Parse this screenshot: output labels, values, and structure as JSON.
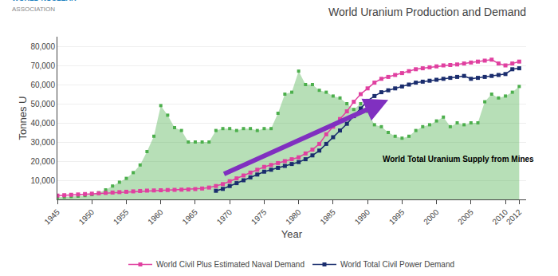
{
  "chart_data": {
    "type": "line",
    "title": "World Uranium Production and Demand",
    "x_label": "Year",
    "y_label": "Tonnes U",
    "xlim": [
      1945,
      2013
    ],
    "ylim": [
      0,
      85000
    ],
    "xticks": [
      1945,
      1950,
      1955,
      1960,
      1965,
      1970,
      1975,
      1980,
      1985,
      1990,
      1995,
      2000,
      2005,
      2010,
      2012
    ],
    "yticks": [
      {
        "value": 10000,
        "label": "10,000"
      },
      {
        "value": 20000,
        "label": "20,000"
      },
      {
        "value": 30000,
        "label": "30,000"
      },
      {
        "value": 40000,
        "label": "40,000"
      },
      {
        "value": 50000,
        "label": "50,000"
      },
      {
        "value": 60000,
        "label": "60,000"
      },
      {
        "value": 70000,
        "label": "70,000"
      },
      {
        "value": 80000,
        "label": "80,000"
      }
    ],
    "grid": true,
    "legend": "bottom",
    "series": [
      {
        "type": "area",
        "color": "#4caf4c",
        "marker": "square",
        "x": [
          1945,
          1946,
          1947,
          1948,
          1949,
          1950,
          1951,
          1952,
          1953,
          1954,
          1955,
          1956,
          1957,
          1958,
          1959,
          1960,
          1961,
          1962,
          1963,
          1964,
          1965,
          1966,
          1967,
          1968,
          1969,
          1970,
          1971,
          1972,
          1973,
          1974,
          1975,
          1976,
          1977,
          1978,
          1979,
          1980,
          1981,
          1982,
          1983,
          1984,
          1985,
          1986,
          1987,
          1988,
          1989,
          1990,
          1991,
          1992,
          1993,
          1994,
          1995,
          1996,
          1997,
          1998,
          1999,
          2000,
          2001,
          2002,
          2003,
          2004,
          2005,
          2006,
          2007,
          2008,
          2009,
          2010,
          2011,
          2012
        ],
        "values": [
          1000,
          1200,
          1500,
          1700,
          2000,
          2500,
          3500,
          5000,
          7000,
          9000,
          11000,
          14000,
          18000,
          25000,
          33000,
          49000,
          44000,
          37500,
          36000,
          30000,
          30000,
          30000,
          30000,
          36000,
          37000,
          37000,
          36000,
          37000,
          37000,
          36000,
          37000,
          37000,
          45000,
          55000,
          56000,
          67000,
          60000,
          60000,
          57000,
          56000,
          54000,
          53000,
          50000,
          47000,
          50000,
          46000,
          39000,
          38000,
          35000,
          33000,
          32000,
          33000,
          36000,
          38000,
          39000,
          41000,
          43000,
          38000,
          40000,
          39000,
          40000,
          40000,
          51000,
          55000,
          53000,
          54000,
          56000,
          59000
        ]
      },
      {
        "name": "World Civil Plus Estimated Naval Demand",
        "type": "line",
        "color": "#e040a0",
        "marker": "square",
        "x": [
          1945,
          1946,
          1947,
          1948,
          1949,
          1950,
          1951,
          1952,
          1953,
          1954,
          1955,
          1956,
          1957,
          1958,
          1959,
          1960,
          1961,
          1962,
          1963,
          1964,
          1965,
          1966,
          1967,
          1968,
          1969,
          1970,
          1971,
          1972,
          1973,
          1974,
          1975,
          1976,
          1977,
          1978,
          1979,
          1980,
          1981,
          1982,
          1983,
          1984,
          1985,
          1986,
          1987,
          1988,
          1989,
          1990,
          1991,
          1992,
          1993,
          1994,
          1995,
          1996,
          1997,
          1998,
          1999,
          2000,
          2001,
          2002,
          2003,
          2004,
          2005,
          2006,
          2007,
          2008,
          2009,
          2010,
          2011,
          2012
        ],
        "values": [
          2000,
          2200,
          2400,
          2600,
          2800,
          3000,
          3200,
          3400,
          3600,
          3800,
          4000,
          4200,
          4400,
          4600,
          4700,
          4800,
          4900,
          5000,
          5100,
          5200,
          5400,
          5700,
          6200,
          7000,
          8000,
          9500,
          11000,
          12500,
          14000,
          15500,
          17000,
          18000,
          19000,
          20000,
          21000,
          22000,
          24000,
          26000,
          29000,
          34000,
          38000,
          42000,
          46000,
          51000,
          55000,
          58000,
          61000,
          63000,
          64000,
          65000,
          66000,
          67000,
          68000,
          68500,
          69000,
          69500,
          70000,
          70200,
          70500,
          71000,
          71500,
          72000,
          72500,
          73000,
          71000,
          70000,
          71000,
          72000
        ]
      },
      {
        "name": "World Total Civil Power Demand",
        "type": "line",
        "color": "#1a2d6e",
        "marker": "square",
        "x": [
          1968,
          1969,
          1970,
          1971,
          1972,
          1973,
          1974,
          1975,
          1976,
          1977,
          1978,
          1979,
          1980,
          1981,
          1982,
          1983,
          1984,
          1985,
          1986,
          1987,
          1988,
          1989,
          1990,
          1991,
          1992,
          1993,
          1994,
          1995,
          1996,
          1997,
          1998,
          1999,
          2000,
          2001,
          2002,
          2003,
          2004,
          2005,
          2006,
          2007,
          2008,
          2009,
          2010,
          2011,
          2012
        ],
        "values": [
          4500,
          5500,
          7000,
          8500,
          10000,
          11500,
          13000,
          14500,
          15500,
          16500,
          17500,
          18500,
          19500,
          21000,
          23000,
          25500,
          29000,
          32500,
          36000,
          39500,
          43500,
          47500,
          51500,
          54000,
          56000,
          57000,
          58000,
          59000,
          60000,
          61000,
          61500,
          62000,
          62500,
          63000,
          63500,
          64000,
          64500,
          63000,
          63500,
          64000,
          64500,
          65000,
          65500,
          68000,
          68500
        ]
      }
    ],
    "arrow": {
      "x_start": 1969,
      "y_start": 13000,
      "x_end": 1993,
      "y_end": 52000,
      "color": "#8030c0"
    },
    "annotations": [
      {
        "text": "World Total Uranium Supply from Mines",
        "x": 1992,
        "y": 21000
      }
    ],
    "logo": [
      "WORLD NUCLEAR",
      "ASSOCIATION"
    ]
  }
}
